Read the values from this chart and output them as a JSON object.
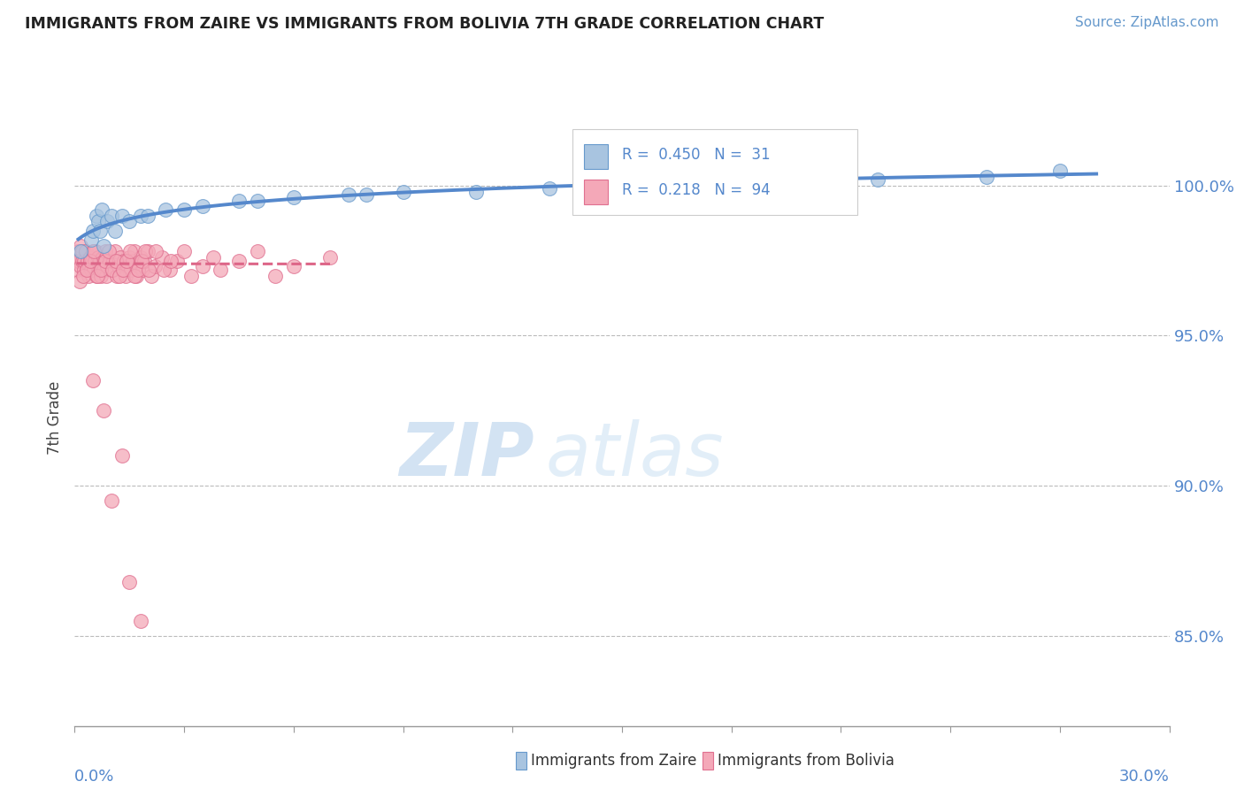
{
  "title": "IMMIGRANTS FROM ZAIRE VS IMMIGRANTS FROM BOLIVIA 7TH GRADE CORRELATION CHART",
  "source": "Source: ZipAtlas.com",
  "ylabel": "7th Grade",
  "xlim": [
    0.0,
    30.0
  ],
  "ylim": [
    82.0,
    102.5
  ],
  "yticks": [
    85.0,
    90.0,
    95.0,
    100.0
  ],
  "ytick_labels": [
    "85.0%",
    "90.0%",
    "95.0%",
    "100.0%"
  ],
  "zaire_R": 0.45,
  "zaire_N": 31,
  "bolivia_R": 0.218,
  "bolivia_N": 94,
  "zaire_color": "#A8C4E0",
  "bolivia_color": "#F4A8B8",
  "zaire_edge_color": "#6699CC",
  "bolivia_edge_color": "#E07090",
  "zaire_line_color": "#5588CC",
  "bolivia_line_color": "#DD6688",
  "legend_label_zaire": "Immigrants from Zaire",
  "legend_label_bolivia": "Immigrants from Bolivia",
  "watermark_zip": "ZIP",
  "watermark_atlas": "atlas",
  "background_color": "#FFFFFF",
  "zaire_x": [
    0.15,
    0.45,
    0.5,
    0.6,
    0.65,
    0.7,
    0.75,
    0.8,
    0.9,
    1.0,
    1.1,
    1.3,
    1.5,
    1.8,
    2.5,
    3.5,
    4.5,
    5.0,
    6.0,
    7.5,
    9.0,
    11.0,
    13.0,
    16.0,
    18.0,
    22.0,
    25.0,
    27.0,
    8.0,
    3.0,
    2.0
  ],
  "zaire_y": [
    97.8,
    98.2,
    98.5,
    99.0,
    98.8,
    98.5,
    99.2,
    98.0,
    98.8,
    99.0,
    98.5,
    99.0,
    98.8,
    99.0,
    99.2,
    99.3,
    99.5,
    99.5,
    99.6,
    99.7,
    99.8,
    99.8,
    99.9,
    100.0,
    100.0,
    100.2,
    100.3,
    100.5,
    99.7,
    99.2,
    99.0
  ],
  "bolivia_x": [
    0.05,
    0.08,
    0.1,
    0.12,
    0.15,
    0.17,
    0.2,
    0.22,
    0.25,
    0.27,
    0.3,
    0.32,
    0.35,
    0.37,
    0.4,
    0.42,
    0.45,
    0.47,
    0.5,
    0.52,
    0.55,
    0.57,
    0.6,
    0.62,
    0.65,
    0.67,
    0.7,
    0.72,
    0.75,
    0.77,
    0.8,
    0.82,
    0.85,
    0.87,
    0.9,
    0.95,
    1.0,
    1.05,
    1.1,
    1.15,
    1.2,
    1.25,
    1.3,
    1.35,
    1.4,
    1.45,
    1.5,
    1.55,
    1.6,
    1.65,
    1.7,
    1.75,
    1.8,
    1.85,
    1.9,
    2.0,
    2.1,
    2.2,
    2.4,
    2.6,
    2.8,
    3.0,
    3.2,
    3.5,
    3.8,
    4.0,
    4.5,
    5.0,
    5.5,
    6.0,
    7.0,
    0.13,
    0.23,
    0.33,
    0.43,
    0.53,
    0.63,
    0.73,
    0.83,
    0.93,
    1.03,
    1.13,
    1.23,
    1.33,
    1.43,
    1.53,
    1.63,
    1.73,
    1.83,
    1.93,
    2.03,
    2.23,
    2.43,
    2.63
  ],
  "bolivia_y": [
    97.5,
    97.8,
    97.2,
    97.5,
    98.0,
    97.3,
    97.5,
    97.8,
    97.2,
    97.5,
    97.8,
    97.2,
    97.5,
    97.0,
    97.3,
    97.6,
    97.2,
    97.5,
    97.8,
    97.2,
    97.5,
    97.8,
    97.0,
    97.3,
    97.6,
    97.2,
    97.5,
    97.0,
    97.3,
    97.6,
    97.2,
    97.5,
    97.8,
    97.0,
    97.3,
    97.5,
    97.2,
    97.5,
    97.8,
    97.0,
    97.3,
    97.6,
    97.2,
    97.5,
    97.0,
    97.3,
    97.6,
    97.2,
    97.5,
    97.8,
    97.0,
    97.3,
    97.6,
    97.2,
    97.5,
    97.8,
    97.0,
    97.3,
    97.6,
    97.2,
    97.5,
    97.8,
    97.0,
    97.3,
    97.6,
    97.2,
    97.5,
    97.8,
    97.0,
    97.3,
    97.6,
    96.8,
    97.0,
    97.2,
    97.5,
    97.8,
    97.0,
    97.2,
    97.5,
    97.8,
    97.2,
    97.5,
    97.0,
    97.2,
    97.5,
    97.8,
    97.0,
    97.2,
    97.5,
    97.8,
    97.2,
    97.8,
    97.2,
    97.5
  ],
  "bolivia_outlier_x": [
    0.5,
    0.8,
    1.0,
    1.3,
    1.5,
    1.8
  ],
  "bolivia_outlier_y": [
    93.5,
    92.5,
    89.5,
    91.0,
    86.8,
    85.5
  ]
}
